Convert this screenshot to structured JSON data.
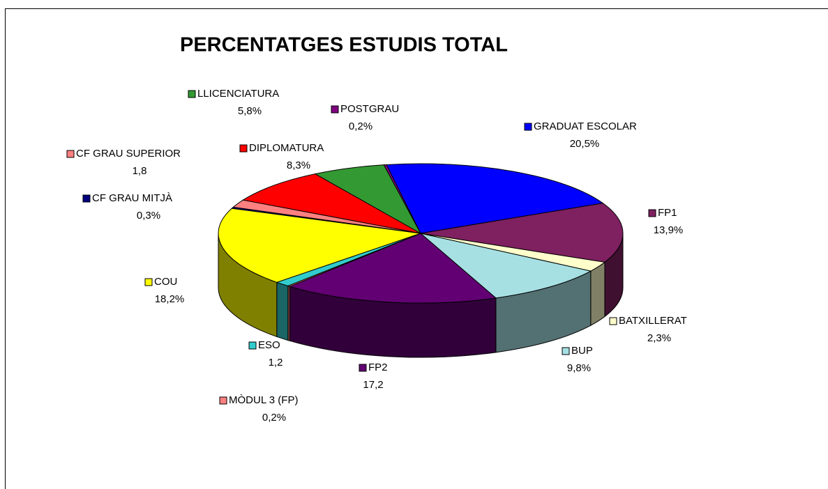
{
  "chart_data": {
    "type": "pie",
    "title": "PERCENTATGES ESTUDIS TOTAL",
    "categories": [
      "GRADUAT ESCOLAR",
      "FP1",
      "BATXILLERAT",
      "BUP",
      "FP2",
      "MÒDUL 3 (FP)",
      "ESO",
      "COU",
      "CF  GRAU MITJÀ",
      "CF GRAU SUPERIOR",
      "DIPLOMATURA",
      "LLICENCIATURA",
      "POSTGRAU"
    ],
    "values": [
      20.5,
      13.9,
      2.3,
      9.8,
      17.2,
      0.2,
      1.2,
      18.2,
      0.3,
      1.8,
      8.3,
      5.8,
      0.2
    ],
    "value_labels": [
      "20,5%",
      "13,9%",
      "2,3%",
      "9,8%",
      "17,2",
      "0,2%",
      "1,2",
      "18,2%",
      "0,3%",
      "1,8",
      "8,3%",
      "5,8%",
      "0,2%"
    ],
    "colors": [
      "#0000ff",
      "#7f2060",
      "#ffffcc",
      "#a6e0e3",
      "#620073",
      "#ff8080",
      "#33cccc",
      "#ffff00",
      "#000080",
      "#ff8080",
      "#ff0000",
      "#339933",
      "#800080"
    ]
  }
}
